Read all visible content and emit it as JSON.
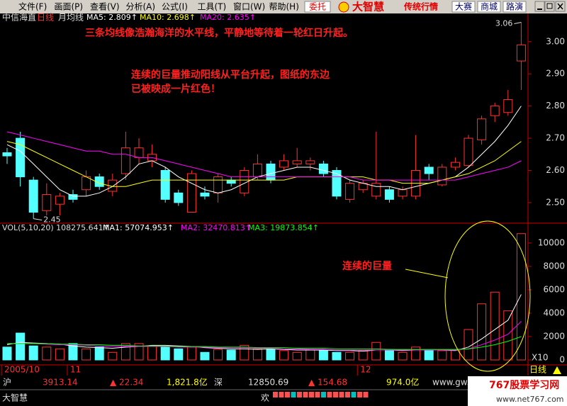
{
  "menu": [
    "文件(F)",
    "画面(P)",
    "查看(V)",
    "分析(A)",
    "公式(I)",
    "工具(T)",
    "窗口(W)",
    "帮助(H)"
  ],
  "toolbar": {
    "trade": "委托",
    "brand": "大智慧",
    "brand_sub": "传统行情",
    "buttons": [
      "大赛",
      "商城",
      "路演"
    ]
  },
  "chart_data": [
    {
      "type": "candlestick",
      "stock": "中信海直",
      "period": "日线",
      "indicator": "月均线",
      "ma_labels": [
        "MA5: 2.809↑",
        "MA10: 2.698↑",
        "MA20: 2.635↑"
      ],
      "open": [
        2.655,
        2.7,
        2.57,
        2.475,
        2.495,
        2.525,
        2.54,
        2.58,
        2.535,
        2.59,
        2.64,
        2.63,
        2.6,
        2.53,
        2.47,
        2.53,
        2.53,
        2.57,
        2.53,
        2.58,
        2.62,
        2.61,
        2.62,
        2.62,
        2.62,
        2.6,
        2.51,
        2.54,
        2.52,
        2.54,
        2.52,
        2.52,
        2.61,
        2.555,
        2.61,
        2.615,
        2.695,
        2.77,
        2.78,
        2.94
      ],
      "high": [
        2.67,
        2.72,
        2.58,
        2.56,
        2.53,
        2.54,
        2.6,
        2.59,
        2.59,
        2.72,
        2.7,
        2.68,
        2.61,
        2.54,
        2.6,
        2.55,
        2.59,
        2.58,
        2.61,
        2.65,
        2.63,
        2.65,
        2.67,
        2.64,
        2.63,
        2.61,
        2.57,
        2.57,
        2.72,
        2.55,
        2.55,
        2.71,
        2.62,
        2.62,
        2.64,
        2.71,
        2.77,
        2.81,
        2.85,
        3.06
      ],
      "low": [
        2.62,
        2.55,
        2.45,
        2.46,
        2.46,
        2.5,
        2.52,
        2.54,
        2.52,
        2.57,
        2.62,
        2.61,
        2.5,
        2.49,
        2.47,
        2.51,
        2.5,
        2.55,
        2.52,
        2.57,
        2.56,
        2.6,
        2.61,
        2.6,
        2.58,
        2.51,
        2.5,
        2.53,
        2.51,
        2.5,
        2.51,
        2.51,
        2.57,
        2.55,
        2.6,
        2.61,
        2.68,
        2.75,
        2.77,
        2.85
      ],
      "close": [
        2.645,
        2.58,
        2.47,
        2.525,
        2.52,
        2.51,
        2.58,
        2.55,
        2.57,
        2.67,
        2.67,
        2.65,
        2.51,
        2.5,
        2.59,
        2.52,
        2.58,
        2.56,
        2.6,
        2.62,
        2.57,
        2.63,
        2.63,
        2.63,
        2.59,
        2.52,
        2.56,
        2.56,
        2.56,
        2.51,
        2.54,
        2.6,
        2.59,
        2.61,
        2.625,
        2.7,
        2.76,
        2.8,
        2.82,
        2.99
      ],
      "up_color": "#ff3232",
      "down_color": "#54ffff",
      "series": [
        {
          "color": "#ffffff",
          "values": [
            2.68,
            2.66,
            2.62,
            2.58,
            2.54,
            2.52,
            2.52,
            2.53,
            2.55,
            2.58,
            2.62,
            2.63,
            2.61,
            2.58,
            2.56,
            2.54,
            2.53,
            2.54,
            2.56,
            2.58,
            2.59,
            2.6,
            2.61,
            2.61,
            2.6,
            2.59,
            2.57,
            2.56,
            2.55,
            2.55,
            2.54,
            2.55,
            2.56,
            2.57,
            2.58,
            2.61,
            2.65,
            2.69,
            2.74,
            2.8
          ]
        },
        {
          "color": "#ffff00",
          "values": [
            2.69,
            2.68,
            2.66,
            2.64,
            2.62,
            2.6,
            2.58,
            2.56,
            2.55,
            2.55,
            2.56,
            2.57,
            2.57,
            2.57,
            2.57,
            2.57,
            2.57,
            2.57,
            2.57,
            2.57,
            2.57,
            2.57,
            2.58,
            2.58,
            2.58,
            2.58,
            2.58,
            2.58,
            2.57,
            2.57,
            2.56,
            2.56,
            2.56,
            2.57,
            2.58,
            2.59,
            2.61,
            2.63,
            2.66,
            2.69
          ]
        },
        {
          "color": "#ff00ff",
          "values": [
            2.72,
            2.71,
            2.7,
            2.69,
            2.68,
            2.67,
            2.66,
            2.66,
            2.65,
            2.65,
            2.64,
            2.64,
            2.63,
            2.62,
            2.61,
            2.6,
            2.59,
            2.58,
            2.58,
            2.58,
            2.58,
            2.58,
            2.58,
            2.58,
            2.58,
            2.58,
            2.58,
            2.57,
            2.57,
            2.57,
            2.57,
            2.57,
            2.57,
            2.57,
            2.57,
            2.58,
            2.59,
            2.6,
            2.61,
            2.63
          ]
        }
      ],
      "ylim": [
        2.436,
        3.081
      ],
      "yticks": [
        {
          "value": 2.5,
          "label": "2.50"
        },
        {
          "value": 2.6,
          "label": "2.60"
        },
        {
          "value": 2.7,
          "label": "2.70"
        },
        {
          "value": 2.8,
          "label": "2.80"
        },
        {
          "value": 2.9,
          "label": "2.90"
        },
        {
          "value": 3.0,
          "label": "3.00"
        }
      ],
      "max_label": "3.06",
      "min_label": "2.45",
      "annotations": [
        "三条均线像浩瀚海洋的水平线，平静地等待着一轮红日升起。",
        "连续的巨量推动阳线从平台升起，图纸的东边",
        "已被映成一片红色！"
      ]
    },
    {
      "type": "bar",
      "indicator_label": "VOL(5,10,20) 108275.641↑",
      "ma_labels": [
        "MA1: 57074.953↑",
        "MA2: 32470.813↑",
        "MA3: 19873.854↑"
      ],
      "categories": [
        "2005/10",
        null,
        null,
        null,
        null,
        "11",
        null,
        null,
        null,
        null,
        null,
        null,
        null,
        null,
        null,
        null,
        null,
        null,
        null,
        null,
        null,
        null,
        null,
        null,
        null,
        null,
        null,
        "12",
        null,
        null,
        null,
        null,
        null,
        null,
        null,
        null,
        null,
        null,
        null,
        null
      ],
      "values": [
        1100,
        2300,
        1200,
        1100,
        950,
        1400,
        950,
        1100,
        650,
        1400,
        1400,
        1200,
        1100,
        950,
        1100,
        650,
        900,
        850,
        1250,
        950,
        900,
        800,
        650,
        900,
        800,
        650,
        650,
        800,
        1500,
        900,
        650,
        1100,
        800,
        800,
        850,
        2600,
        4800,
        5800,
        4200,
        10800
      ],
      "series": [
        {
          "color": "#ffffff",
          "values": [
            1300,
            1500,
            1450,
            1400,
            1350,
            1200,
            1100,
            1050,
            1000,
            1100,
            1150,
            1250,
            1250,
            1200,
            1150,
            1050,
            1000,
            950,
            950,
            900,
            950,
            900,
            850,
            850,
            850,
            800,
            800,
            750,
            850,
            850,
            800,
            850,
            850,
            850,
            800,
            1100,
            1800,
            2600,
            3400,
            5600
          ]
        },
        {
          "color": "#ff00ff",
          "values": [
            1400,
            1400,
            1400,
            1350,
            1300,
            1300,
            1250,
            1200,
            1150,
            1150,
            1150,
            1150,
            1150,
            1100,
            1100,
            1100,
            1050,
            1050,
            1050,
            1000,
            1000,
            950,
            950,
            900,
            900,
            850,
            850,
            850,
            850,
            850,
            850,
            850,
            850,
            850,
            850,
            950,
            1300,
            1700,
            2200,
            3300
          ]
        },
        {
          "color": "#00ff00",
          "values": [
            1400,
            1400,
            1400,
            1400,
            1350,
            1350,
            1300,
            1300,
            1250,
            1250,
            1200,
            1200,
            1200,
            1150,
            1150,
            1150,
            1100,
            1100,
            1100,
            1050,
            1050,
            1050,
            1000,
            1000,
            1000,
            950,
            950,
            950,
            950,
            900,
            900,
            900,
            900,
            900,
            900,
            950,
            1100,
            1300,
            1600,
            2000
          ]
        }
      ],
      "ylim": [
        0,
        11270
      ],
      "yticks": [
        0,
        2000,
        4000,
        6000,
        8000,
        10000
      ],
      "unit": "X10",
      "annotation": "连续的巨量",
      "period_tab": "日线"
    }
  ],
  "status": {
    "sh": "沪",
    "sh_index": "3913.14",
    "sh_change": "▲ 22.34",
    "sh_amount": "1,821.8亿",
    "sz": "深",
    "sz_index": "12850.69",
    "sz_change": "▲ 154.68",
    "sz_amount": "974.0亿",
    "site": "www.gw.c",
    "app": "大智慧",
    "ticker": "欢"
  },
  "watermark": {
    "title": "767股票学习网",
    "url": "www.net767.com"
  }
}
